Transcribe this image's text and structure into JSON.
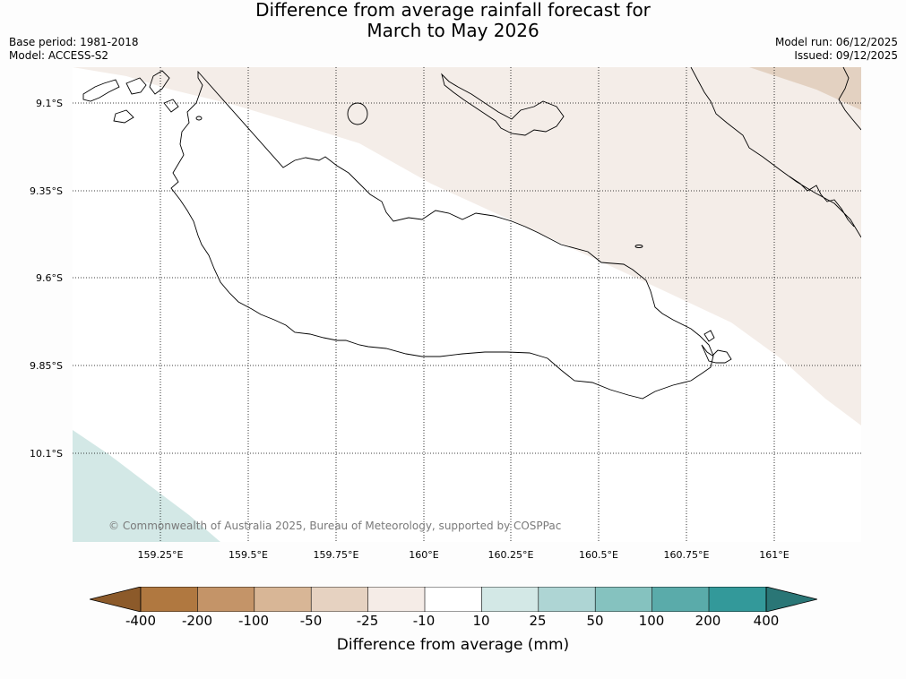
{
  "title": {
    "line1": "Difference from average rainfall forecast for",
    "line2": "March to May 2026"
  },
  "meta": {
    "base_period": "Base period: 1981-2018",
    "model": "Model: ACCESS-S2",
    "model_run": "Model run: 06/12/2025",
    "issued": "Issued: 09/12/2025"
  },
  "map": {
    "lat_labels": [
      "9.1°S",
      "9.35°S",
      "9.6°S",
      "9.85°S",
      "10.1°S"
    ],
    "lon_labels": [
      "159.25°E",
      "159.5°E",
      "159.75°E",
      "160°E",
      "160.25°E",
      "160.5°E",
      "160.75°E",
      "161°E"
    ],
    "copyright": "© Commonwealth of Australia 2025, Bureau of Meteorology, supported by COSPPac",
    "region_colors": {
      "dry_light": "#f4ede8",
      "dry_medium": "#e3d1c1",
      "neutral": "#ffffff",
      "wet_light": "#d3e8e6",
      "coastline": "#000000"
    }
  },
  "colorbar": {
    "title": "Difference from average (mm)",
    "ticks": [
      "-400",
      "-200",
      "-100",
      "-50",
      "-25",
      "-10",
      "10",
      "25",
      "50",
      "100",
      "200",
      "400"
    ],
    "colors": [
      "#8c5a2a",
      "#b07840",
      "#c49468",
      "#d8b696",
      "#e6d2c1",
      "#f5ece7",
      "#ffffff",
      "#d3e8e6",
      "#aed5d4",
      "#85c2bf",
      "#5aabaa",
      "#33999a",
      "#2a7676"
    ]
  }
}
